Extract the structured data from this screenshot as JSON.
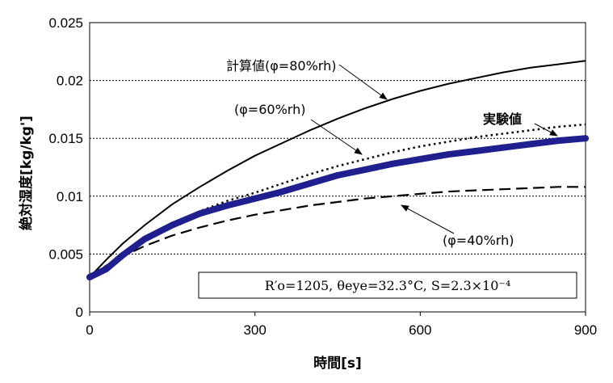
{
  "chart_data": {
    "type": "line",
    "title": "",
    "xlabel": "時間[s]",
    "ylabel": "絶対湿度[kg/kg']",
    "xlim": [
      0,
      900
    ],
    "ylim": [
      0,
      0.025
    ],
    "xticks": [
      0,
      300,
      600,
      900
    ],
    "xtick_labels": [
      "0",
      "300",
      "600",
      "900"
    ],
    "yticks": [
      0,
      0.005,
      0.01,
      0.015,
      0.02,
      0.025
    ],
    "ytick_labels": [
      "0",
      "0.005",
      "0.01",
      "0.015",
      "0.02",
      "0.025"
    ],
    "grid": "horizontal dotted",
    "series": [
      {
        "name": "計算値(φ=80%rh)",
        "style": "solid",
        "color": "#000000",
        "x": [
          0,
          30,
          60,
          100,
          150,
          200,
          250,
          300,
          350,
          400,
          450,
          500,
          550,
          600,
          650,
          700,
          750,
          800,
          850,
          900
        ],
        "y": [
          0.003,
          0.0045,
          0.0059,
          0.0075,
          0.0093,
          0.0108,
          0.0122,
          0.0135,
          0.0146,
          0.0157,
          0.0167,
          0.0176,
          0.0184,
          0.0191,
          0.0197,
          0.0202,
          0.0207,
          0.0211,
          0.0214,
          0.0217
        ]
      },
      {
        "name": "φ=60%rh",
        "style": "dotted",
        "color": "#000000",
        "x": [
          0,
          30,
          60,
          100,
          150,
          200,
          250,
          300,
          350,
          400,
          450,
          500,
          550,
          600,
          650,
          700,
          750,
          800,
          850,
          900
        ],
        "y": [
          0.003,
          0.0036,
          0.0047,
          0.0062,
          0.0076,
          0.0087,
          0.0096,
          0.0103,
          0.0111,
          0.0119,
          0.0126,
          0.0132,
          0.0138,
          0.0143,
          0.0147,
          0.0151,
          0.0154,
          0.0157,
          0.016,
          0.0162
        ]
      },
      {
        "name": "実験値",
        "style": "thick",
        "color": "#1f1f8f",
        "x": [
          0,
          30,
          60,
          100,
          150,
          200,
          250,
          300,
          350,
          400,
          450,
          500,
          550,
          600,
          650,
          700,
          750,
          800,
          850,
          900
        ],
        "y": [
          0.003,
          0.0037,
          0.0049,
          0.0063,
          0.0075,
          0.0085,
          0.0092,
          0.0098,
          0.0104,
          0.0111,
          0.0118,
          0.0123,
          0.0128,
          0.0132,
          0.0136,
          0.0139,
          0.0142,
          0.0145,
          0.0148,
          0.015
        ]
      },
      {
        "name": "φ=40%rh",
        "style": "dashed",
        "color": "#000000",
        "x": [
          0,
          30,
          60,
          100,
          150,
          200,
          250,
          300,
          350,
          400,
          450,
          500,
          550,
          600,
          650,
          700,
          750,
          800,
          850,
          900
        ],
        "y": [
          0.003,
          0.004,
          0.0048,
          0.0057,
          0.0066,
          0.0073,
          0.0079,
          0.0084,
          0.0088,
          0.0092,
          0.0095,
          0.0098,
          0.01,
          0.0102,
          0.0104,
          0.0105,
          0.0106,
          0.0107,
          0.0108,
          0.0108
        ]
      }
    ],
    "annotations": {
      "calc80": "計算値(φ=80%rh)",
      "rh60": "(φ=60%rh)",
      "experiment": "実験値",
      "rh40": "(φ=40%rh)",
      "params": "R′o=1205, θeye=32.3°C, S=2.3×10⁻⁴"
    }
  }
}
